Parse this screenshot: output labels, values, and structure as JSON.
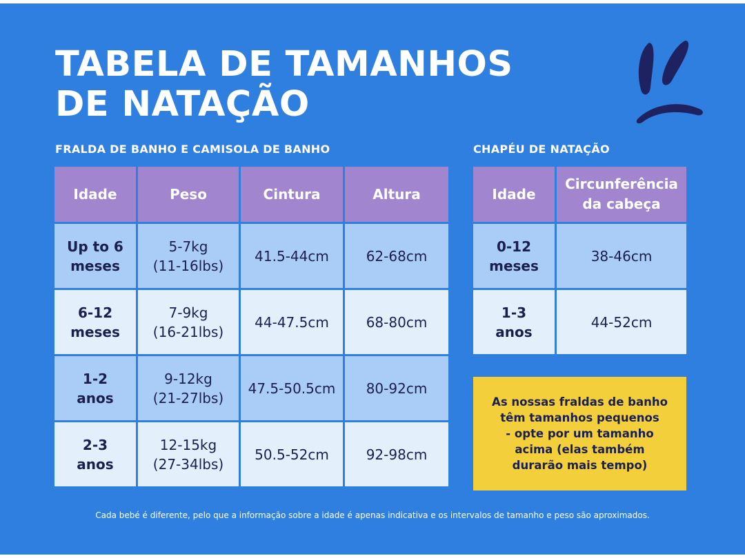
{
  "title": {
    "line1": "TABELA DE TAMANHOS",
    "line2": "DE NATAÇÃO"
  },
  "decoration": {
    "icon": "bunny-ears-brush-icon",
    "color": "#1e2260"
  },
  "colors": {
    "background": "#2f7fe1",
    "header": "#a285cf",
    "row_dark": "#a9cdf6",
    "row_light": "#e4effc",
    "note": "#f4cf3c",
    "text_dark": "#1a1f4e"
  },
  "swim_nappy_table": {
    "label": "FRALDA DE BANHO E CAMISOLA DE BANHO",
    "headers": [
      "Idade",
      "Peso",
      "Cintura",
      "Altura"
    ],
    "rows": [
      [
        "Up to 6\nmeses",
        "5-7kg\n(11-16lbs)",
        "41.5-44cm",
        "62-68cm"
      ],
      [
        "6-12\nmeses",
        "7-9kg\n(16-21lbs)",
        "44-47.5cm",
        "68-80cm"
      ],
      [
        "1-2\nanos",
        "9-12kg\n(21-27lbs)",
        "47.5-50.5cm",
        "80-92cm"
      ],
      [
        "2-3\nanos",
        "12-15kg\n(27-34lbs)",
        "50.5-52cm",
        "92-98cm"
      ]
    ]
  },
  "hat_table": {
    "label": "CHAPÉU DE NATAÇÃO",
    "headers": [
      "Idade",
      "Circunferência\nda cabeça"
    ],
    "rows": [
      [
        "0-12\nmeses",
        "38-46cm"
      ],
      [
        "1-3\nanos",
        "44-52cm"
      ]
    ]
  },
  "note": "As nossas fraldas de banho\ntêm tamanhos pequenos\n- opte por um tamanho\nacima (elas também\ndurarão mais tempo)",
  "footer": "Cada bebé é diferente, pelo que a informação sobre a idade é apenas indicativa e os intervalos de tamanho e peso são aproximados."
}
